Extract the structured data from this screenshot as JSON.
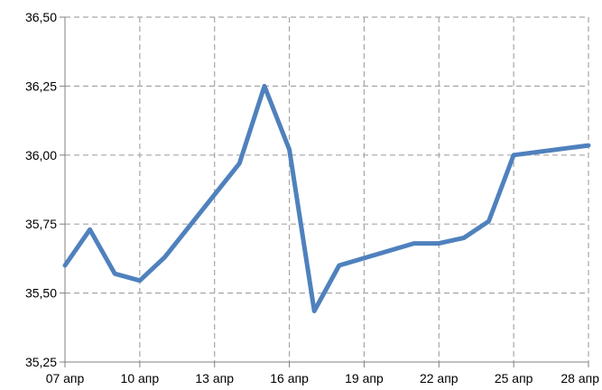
{
  "chart_data": {
    "type": "line",
    "title": "",
    "xlabel": "",
    "ylabel": "",
    "x_tick_labels": [
      "07 апр",
      "10 апр",
      "13 апр",
      "16 апр",
      "19 апр",
      "22 апр",
      "25 апр",
      "28 апр"
    ],
    "y_tick_labels": [
      "35,25",
      "35,50",
      "35,75",
      "36,00",
      "36,25",
      "36,50"
    ],
    "ylim": [
      35.25,
      36.5
    ],
    "grid": true,
    "legend": "none",
    "line_color": "#4f81bd",
    "grid_color": "#a6a6a6",
    "series": [
      {
        "x": [
          "2015-04-07",
          "2015-04-08",
          "2015-04-09",
          "2015-04-10",
          "2015-04-11",
          "2015-04-14",
          "2015-04-15",
          "2015-04-16",
          "2015-04-17",
          "2015-04-18",
          "2015-04-21",
          "2015-04-22",
          "2015-04-23",
          "2015-04-24",
          "2015-04-25",
          "2015-04-28"
        ],
        "values": [
          35.6,
          35.73,
          35.57,
          35.545,
          35.63,
          35.97,
          36.25,
          36.02,
          35.435,
          35.6,
          35.68,
          35.68,
          35.7,
          35.76,
          36.0,
          36.035
        ]
      }
    ]
  }
}
